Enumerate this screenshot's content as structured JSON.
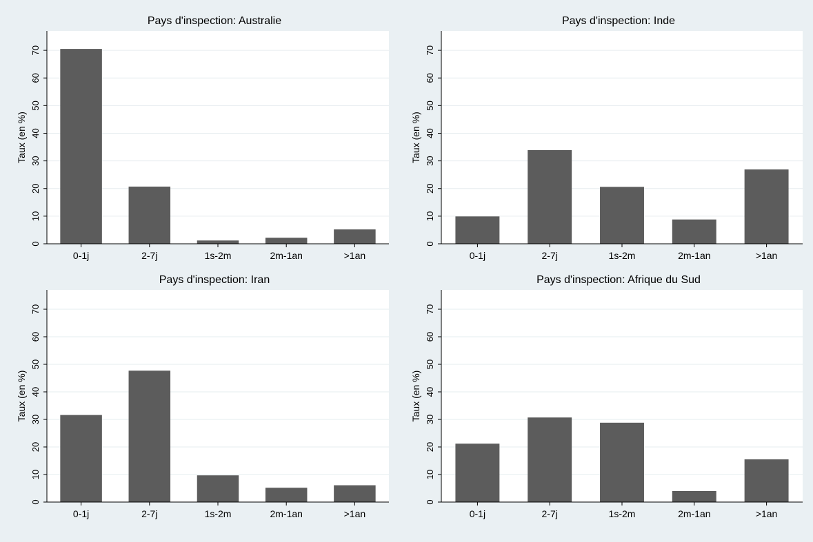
{
  "chart_data": [
    {
      "type": "bar",
      "title": "Pays d'inspection: Australie",
      "ylabel": "Taux (en %)",
      "categories": [
        "0-1j",
        "2-7j",
        "1s-2m",
        "2m-1an",
        ">1an"
      ],
      "values": [
        70.5,
        20.7,
        1.2,
        2.2,
        5.2
      ],
      "ylim": [
        0,
        77
      ],
      "yticks": [
        0,
        10,
        20,
        30,
        40,
        50,
        60,
        70
      ],
      "grid": true
    },
    {
      "type": "bar",
      "title": "Pays d'inspection: Inde",
      "ylabel": "Taux (en %)",
      "categories": [
        "0-1j",
        "2-7j",
        "1s-2m",
        "2m-1an",
        ">1an"
      ],
      "values": [
        9.9,
        33.9,
        20.6,
        8.8,
        26.9
      ],
      "ylim": [
        0,
        77
      ],
      "yticks": [
        0,
        10,
        20,
        30,
        40,
        50,
        60,
        70
      ],
      "grid": true
    },
    {
      "type": "bar",
      "title": "Pays d'inspection: Iran",
      "ylabel": "Taux (en %)",
      "categories": [
        "0-1j",
        "2-7j",
        "1s-2m",
        "2m-1an",
        ">1an"
      ],
      "values": [
        31.6,
        47.7,
        9.7,
        5.2,
        6.1
      ],
      "ylim": [
        0,
        77
      ],
      "yticks": [
        0,
        10,
        20,
        30,
        40,
        50,
        60,
        70
      ],
      "grid": true
    },
    {
      "type": "bar",
      "title": "Pays d'inspection: Afrique du Sud",
      "ylabel": "Taux (en %)",
      "categories": [
        "0-1j",
        "2-7j",
        "1s-2m",
        "2m-1an",
        ">1an"
      ],
      "values": [
        21.2,
        30.7,
        28.8,
        4.0,
        15.5
      ],
      "ylim": [
        0,
        77
      ],
      "yticks": [
        0,
        10,
        20,
        30,
        40,
        50,
        60,
        70
      ],
      "grid": true
    }
  ],
  "colors": {
    "bar": "#5c5c5c",
    "panel_background": "#ffffff",
    "figure_background": "#eaf0f3",
    "title_strip": "#eaf0f3",
    "grid": "#e6ecef",
    "axis": "#000000"
  }
}
